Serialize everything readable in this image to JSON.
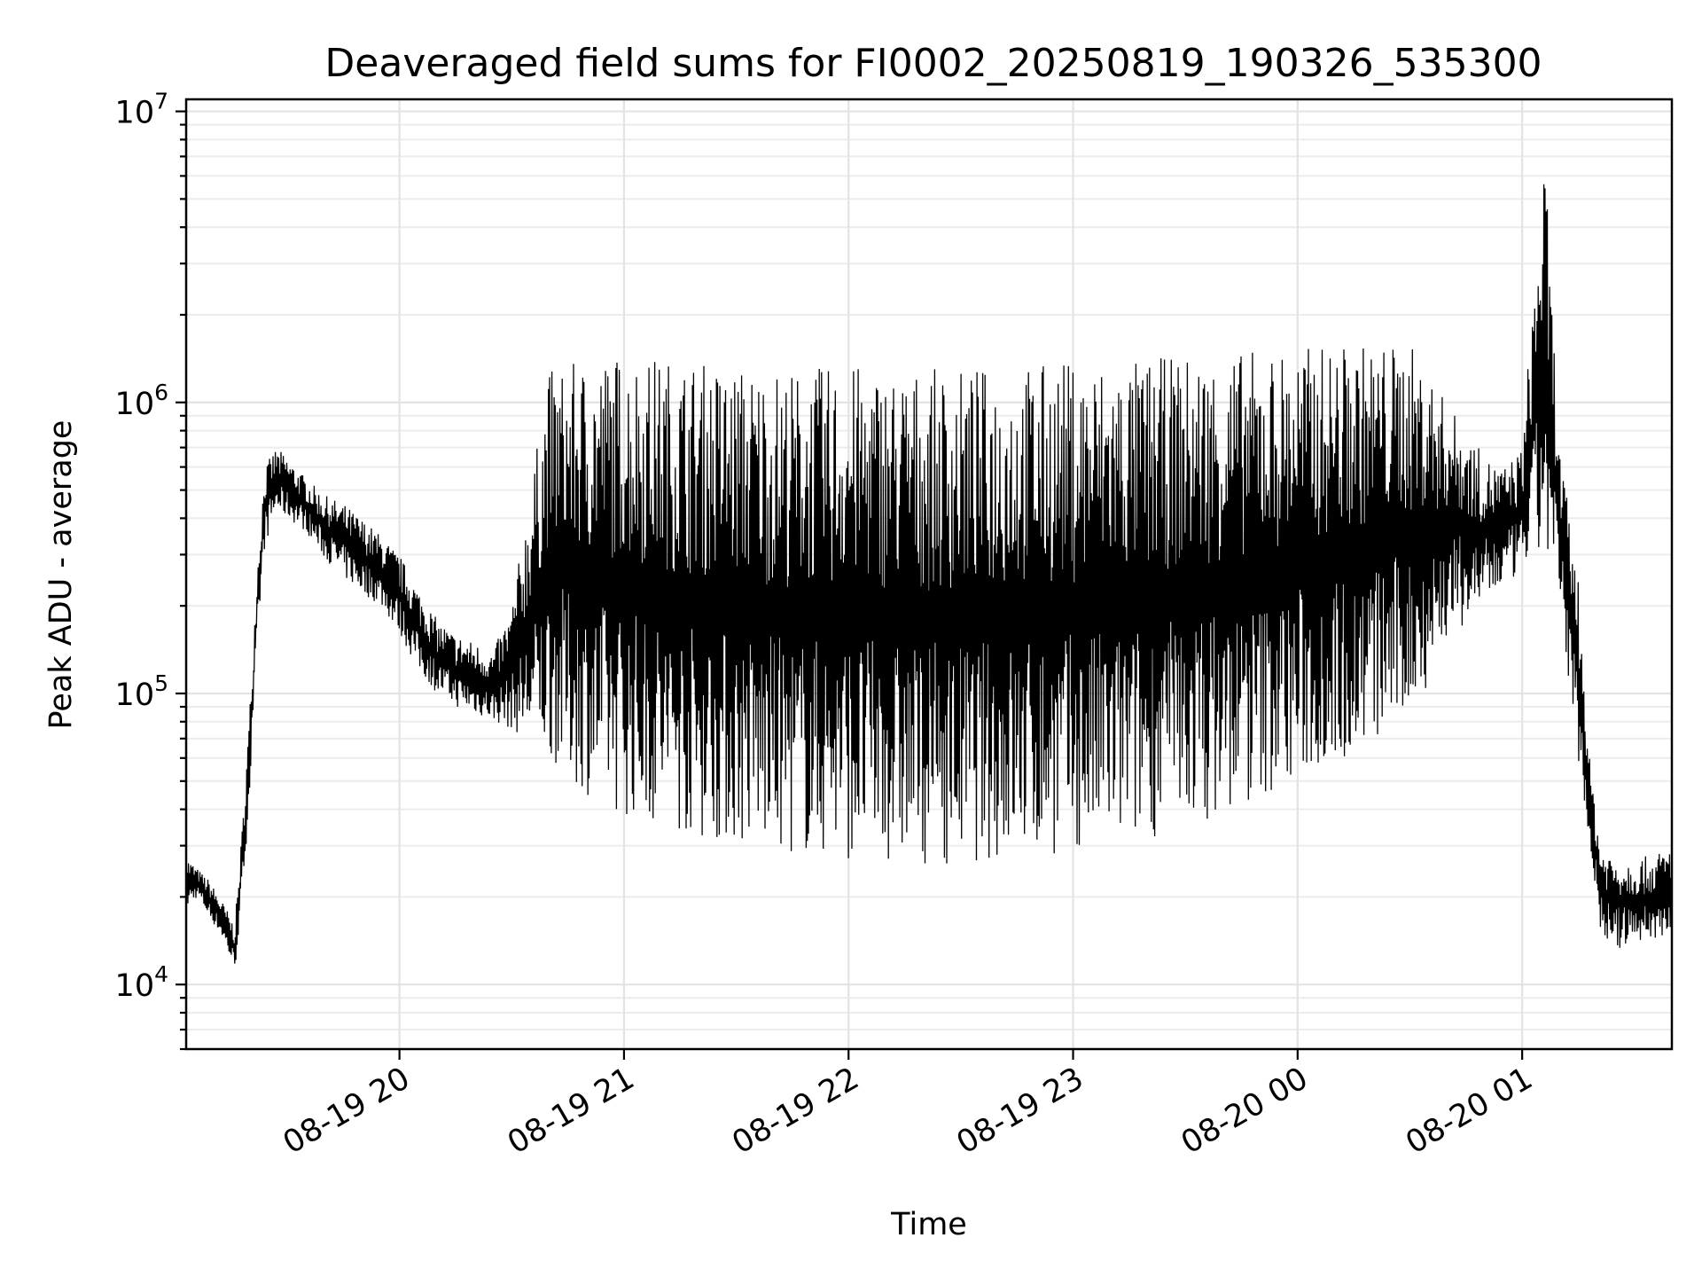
{
  "chart_data": {
    "type": "line",
    "title": "Deaveraged field sums for FI0002_20250819_190326_535300",
    "xlabel": "Time",
    "ylabel": "Peak ADU - average",
    "yscale": "log",
    "xlim": [
      "2025-08-19 19:03",
      "2025-08-20 01:40"
    ],
    "ylim": [
      6000,
      11000000
    ],
    "grid": true,
    "x_ticks": [
      "08-19 20",
      "08-19 21",
      "08-19 22",
      "08-19 23",
      "08-20 00",
      "08-20 01"
    ],
    "x_tick_values": [
      "2025-08-19 20:00",
      "2025-08-19 21:00",
      "2025-08-19 22:00",
      "2025-08-19 23:00",
      "2025-08-20 00:00",
      "2025-08-20 01:00"
    ],
    "y_ticks": [
      {
        "base": "10",
        "exp": "4",
        "value": 10000
      },
      {
        "base": "10",
        "exp": "5",
        "value": 100000
      },
      {
        "base": "10",
        "exp": "6",
        "value": 1000000
      },
      {
        "base": "10",
        "exp": "7",
        "value": 10000000
      }
    ],
    "line_color": "#000000",
    "series": [
      {
        "x": [
          "2025-08-19 19:03",
          "2025-08-19 19:06",
          "2025-08-19 19:09",
          "2025-08-19 19:12",
          "2025-08-19 19:14",
          "2025-08-19 19:16",
          "2025-08-19 19:18",
          "2025-08-19 19:20",
          "2025-08-19 19:22",
          "2025-08-19 19:24",
          "2025-08-19 19:27",
          "2025-08-19 19:30",
          "2025-08-19 19:35",
          "2025-08-19 19:40",
          "2025-08-19 19:45",
          "2025-08-19 19:50",
          "2025-08-19 19:55",
          "2025-08-19 20:00",
          "2025-08-19 20:05",
          "2025-08-19 20:10",
          "2025-08-19 20:15",
          "2025-08-19 20:20",
          "2025-08-19 20:25",
          "2025-08-19 20:30",
          "2025-08-19 20:40",
          "2025-08-19 20:50",
          "2025-08-19 21:00",
          "2025-08-19 21:15",
          "2025-08-19 21:30",
          "2025-08-19 21:45",
          "2025-08-19 22:00",
          "2025-08-19 22:15",
          "2025-08-19 22:30",
          "2025-08-19 22:45",
          "2025-08-19 23:00",
          "2025-08-19 23:15",
          "2025-08-19 23:30",
          "2025-08-19 23:45",
          "2025-08-20 00:00",
          "2025-08-20 00:15",
          "2025-08-20 00:30",
          "2025-08-20 00:40",
          "2025-08-20 00:50",
          "2025-08-20 00:55",
          "2025-08-20 01:00",
          "2025-08-20 01:03",
          "2025-08-20 01:06",
          "2025-08-20 01:10",
          "2025-08-20 01:15",
          "2025-08-20 01:18",
          "2025-08-20 01:21",
          "2025-08-20 01:25",
          "2025-08-20 01:30",
          "2025-08-20 01:35",
          "2025-08-20 01:40"
        ],
        "lower": [
          18000,
          20000,
          17000,
          15000,
          13000,
          11000,
          20000,
          45000,
          150000,
          320000,
          420000,
          400000,
          360000,
          290000,
          250000,
          220000,
          200000,
          160000,
          120000,
          100000,
          90000,
          85000,
          80000,
          75000,
          60000,
          45000,
          38000,
          33000,
          30000,
          28000,
          27000,
          26000,
          26000,
          27000,
          28000,
          30000,
          35000,
          40000,
          50000,
          60000,
          80000,
          150000,
          200000,
          230000,
          260000,
          280000,
          300000,
          200000,
          60000,
          30000,
          15000,
          13000,
          14000,
          14000,
          15000
        ],
        "upper": [
          28000,
          25000,
          23000,
          20000,
          18000,
          16000,
          35000,
          90000,
          280000,
          600000,
          700000,
          650000,
          550000,
          480000,
          450000,
          400000,
          350000,
          300000,
          230000,
          180000,
          160000,
          150000,
          140000,
          200000,
          1300000,
          1400000,
          1500000,
          1400000,
          1350000,
          1300000,
          1350000,
          1300000,
          1300000,
          1350000,
          1400000,
          1400000,
          1450000,
          1500000,
          1550000,
          1600000,
          1600000,
          1000000,
          650000,
          600000,
          700000,
          2500000,
          7000000,
          700000,
          250000,
          60000,
          30000,
          28000,
          27000,
          28000,
          30000
        ]
      }
    ]
  }
}
